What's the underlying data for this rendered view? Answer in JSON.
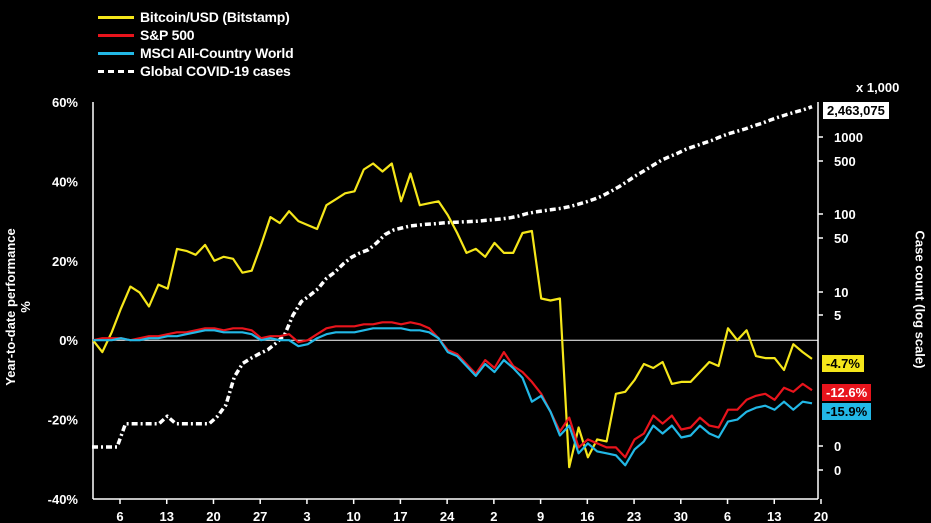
{
  "chart_data": {
    "type": "line",
    "left_axis": {
      "label": "Year-to-date performance %",
      "ticks": [
        "60%",
        "40%",
        "20%",
        "0%",
        "-20%",
        "-40%"
      ],
      "tick_values": [
        60,
        40,
        20,
        0,
        -20,
        -40
      ],
      "range": [
        -40,
        60
      ]
    },
    "right_axis": {
      "label": "Case count (log scale)",
      "unit": "x 1,000",
      "scale": "log",
      "ticks": [
        "1000",
        "500",
        "100",
        "50",
        "10",
        "5",
        "0",
        "0"
      ],
      "tick_values": [
        1000,
        500,
        100,
        50,
        10,
        5,
        0.5,
        0.2
      ]
    },
    "x_ticks": [
      "6",
      "13",
      "20",
      "27",
      "3",
      "10",
      "17",
      "24",
      "2",
      "9",
      "16",
      "23",
      "30",
      "6",
      "13",
      "20"
    ],
    "legend": [
      "Bitcoin/USD (Bitstamp)",
      "S&P 500",
      "MSCI All-Country World",
      "Global COVID-19 cases"
    ],
    "colors": {
      "bitcoin": "#f5e61a",
      "sp500": "#e8141c",
      "msci": "#22b8e6",
      "covid": "#ffffff"
    },
    "series": [
      {
        "name": "Bitcoin/USD (Bitstamp)",
        "axis": "left",
        "end_label": "-4.7%",
        "values": [
          0,
          -3,
          2,
          8,
          13.5,
          12,
          8.5,
          14,
          13,
          23,
          22.5,
          21.5,
          24,
          20,
          21,
          20.5,
          17,
          17.5,
          24,
          31,
          29.5,
          32.5,
          30,
          29,
          28,
          34,
          35.5,
          37,
          37.5,
          43,
          44.5,
          42.5,
          44.5,
          35,
          42,
          34,
          34.5,
          35,
          31.5,
          27,
          22,
          23,
          21,
          24.5,
          22,
          22,
          27,
          27.5,
          10.5,
          10,
          10.5,
          -32,
          -22,
          -29.5,
          -25,
          -25.5,
          -13.5,
          -13,
          -10,
          -6,
          -7,
          -5.5,
          -11,
          -10.5,
          -10.5,
          -8,
          -5.5,
          -6.5,
          3,
          0,
          2.5,
          -4,
          -4.5,
          -4.5,
          -7.5,
          -1,
          -3,
          -4.7
        ]
      },
      {
        "name": "S&P 500",
        "axis": "left",
        "end_label": "-12.6%",
        "values": [
          0,
          0.5,
          0.5,
          0.5,
          0,
          0.5,
          1,
          1,
          1.5,
          2,
          2,
          2.5,
          3,
          3,
          2.5,
          3,
          3,
          2.5,
          0.5,
          1,
          1,
          1.5,
          -0.5,
          0,
          1.5,
          3,
          3.5,
          3.5,
          3.5,
          4,
          4,
          4.5,
          4.5,
          4,
          4.5,
          4,
          3,
          0.5,
          -2.5,
          -3.5,
          -6,
          -8.5,
          -5,
          -7,
          -3,
          -6.5,
          -8,
          -10.5,
          -13.5,
          -18,
          -23,
          -19.5,
          -27,
          -25,
          -26,
          -27,
          -27,
          -29.5,
          -25,
          -23.5,
          -19,
          -21,
          -19,
          -22.5,
          -22,
          -19.5,
          -21.5,
          -22,
          -17.5,
          -17.5,
          -15,
          -14,
          -13.5,
          -15,
          -12,
          -13,
          -11,
          -12.6
        ]
      },
      {
        "name": "MSCI All-Country World",
        "axis": "left",
        "end_label": "-15.9%",
        "values": [
          0,
          0,
          0,
          0.5,
          0,
          0,
          0.5,
          0.5,
          1,
          1,
          1.5,
          2,
          2.5,
          2.5,
          2,
          2,
          2,
          1.5,
          0,
          0.5,
          0,
          0,
          -1.5,
          -1,
          0.5,
          1.5,
          2,
          2,
          2,
          2.5,
          3,
          3,
          3,
          3,
          2.5,
          2.5,
          2,
          0.5,
          -3,
          -4,
          -6.5,
          -9,
          -6,
          -8,
          -5,
          -7,
          -9.5,
          -15.5,
          -14,
          -18,
          -24,
          -21.5,
          -28.5,
          -26,
          -28,
          -28.5,
          -29,
          -31.5,
          -27.5,
          -25.5,
          -21.5,
          -23.5,
          -21.5,
          -24.5,
          -24,
          -21.5,
          -23.5,
          -24.5,
          -20.5,
          -20,
          -18,
          -17,
          -16.5,
          -17.5,
          -15.5,
          -17.5,
          -15.5,
          -15.9
        ]
      },
      {
        "name": "Global COVID-19 cases",
        "axis": "right",
        "end_label": "2,463,075",
        "values": [
          0.1,
          0.1,
          0.1,
          0.1,
          0.2,
          0.2,
          0.2,
          0.2,
          0.2,
          0.25,
          0.2,
          0.2,
          0.2,
          0.2,
          0.2,
          0.25,
          0.35,
          0.8,
          1.2,
          1.4,
          1.6,
          1.8,
          2.2,
          2.8,
          5,
          7.5,
          9,
          11,
          15,
          18,
          23,
          28,
          32,
          35,
          43,
          55,
          63,
          67,
          71,
          73,
          75,
          76,
          78,
          79,
          80,
          81,
          82,
          84,
          86,
          88,
          91,
          96,
          103,
          108,
          112,
          116,
          120,
          126,
          135,
          145,
          158,
          175,
          200,
          230,
          270,
          320,
          370,
          430,
          500,
          560,
          620,
          700,
          760,
          830,
          900,
          1000,
          1100,
          1180,
          1270,
          1390,
          1500,
          1650,
          1800,
          1950,
          2100,
          2250,
          2463.075
        ]
      }
    ]
  }
}
